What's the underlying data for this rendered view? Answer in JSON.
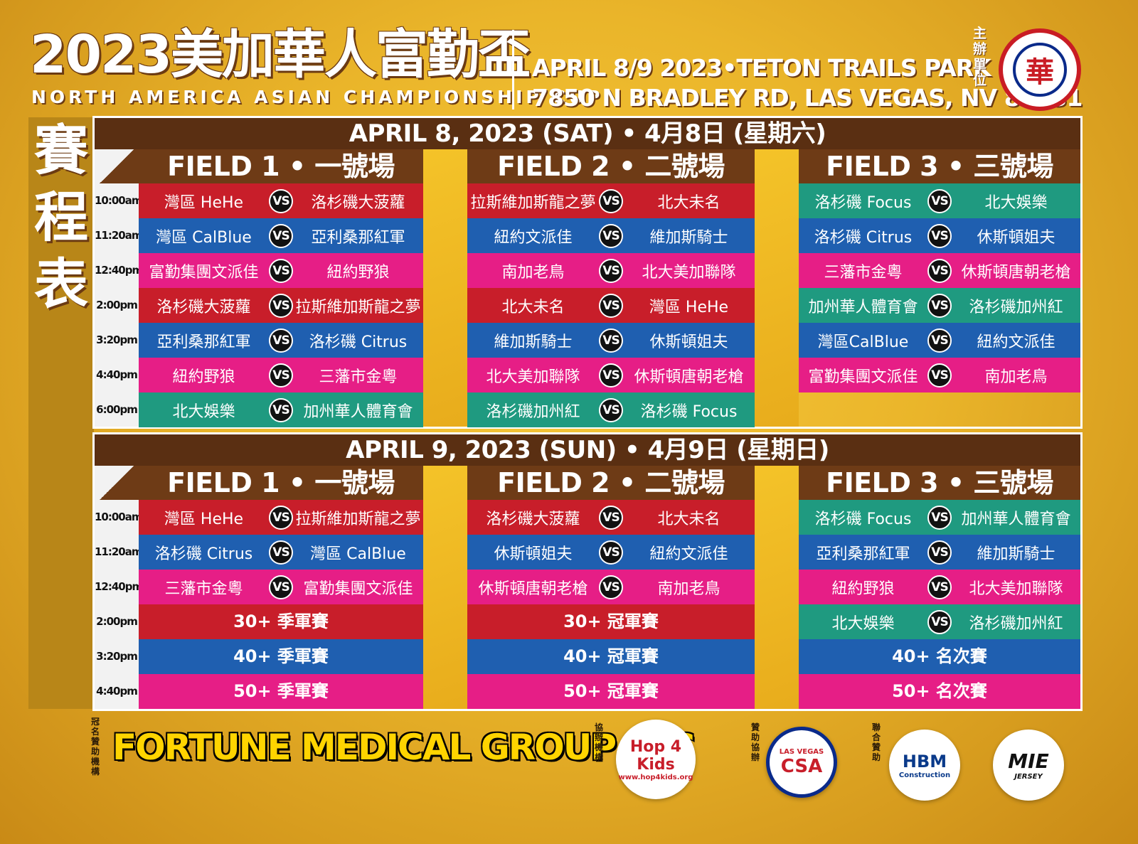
{
  "header": {
    "title": "2023美加華人富勤盃",
    "subtitle": "NORTH AMERICA ASIAN CHAMPIONSHIP CUP",
    "event_line_1": "APRIL 8/9 2023•TETON TRAILS PARK",
    "event_line_2": "7850 N BRADLEY RD, LAS VEGAS, NV 89131",
    "host_label": "主辦單位",
    "host_logo_glyph": "華"
  },
  "schedule_label": "賽程表",
  "day1": {
    "title": "APRIL 8, 2023 (SAT) • 4月8日 (星期六)",
    "fields": [
      "FIELD 1 • 一號場",
      "FIELD 2 • 二號場",
      "FIELD 3 • 三號場"
    ],
    "times": [
      "10:00am",
      "11:20am",
      "12:40pm",
      "2:00pm",
      "3:20pm",
      "4:40pm",
      "6:00pm"
    ],
    "field1": [
      {
        "home": "灣區 HeHe",
        "away": "洛杉磯大菠蘿",
        "color": "red"
      },
      {
        "home": "灣區 CalBlue",
        "away": "亞利桑那紅軍",
        "color": "blue"
      },
      {
        "home": "富勤集團文派佳",
        "away": "紐約野狼",
        "color": "pink"
      },
      {
        "home": "洛杉磯大菠蘿",
        "away": "拉斯維加斯龍之夢",
        "color": "red"
      },
      {
        "home": "亞利桑那紅軍",
        "away": "洛杉磯 Citrus",
        "color": "blue"
      },
      {
        "home": "紐約野狼",
        "away": "三藩市金粵",
        "color": "pink"
      },
      {
        "home": "北大娛樂",
        "away": "加州華人體育會",
        "color": "green"
      }
    ],
    "field2": [
      {
        "home": "拉斯維加斯龍之夢",
        "away": "北大未名",
        "color": "red"
      },
      {
        "home": "紐約文派佳",
        "away": "維加斯騎士",
        "color": "blue"
      },
      {
        "home": "南加老鳥",
        "away": "北大美加聯隊",
        "color": "pink"
      },
      {
        "home": "北大未名",
        "away": "灣區 HeHe",
        "color": "red"
      },
      {
        "home": "維加斯騎士",
        "away": "休斯頓姐夫",
        "color": "blue"
      },
      {
        "home": "北大美加聯隊",
        "away": "休斯頓唐朝老槍",
        "color": "pink"
      },
      {
        "home": "洛杉磯加州紅",
        "away": "洛杉磯 Focus",
        "color": "green"
      }
    ],
    "field3": [
      {
        "home": "洛杉磯 Focus",
        "away": "北大娛樂",
        "color": "green"
      },
      {
        "home": "洛杉磯 Citrus",
        "away": "休斯頓姐夫",
        "color": "blue"
      },
      {
        "home": "三藩市金粵",
        "away": "休斯頓唐朝老槍",
        "color": "pink"
      },
      {
        "home": "加州華人體育會",
        "away": "洛杉磯加州紅",
        "color": "green"
      },
      {
        "home": "灣區CalBlue",
        "away": "紐約文派佳",
        "color": "blue"
      },
      {
        "home": "富勤集團文派佳",
        "away": "南加老鳥",
        "color": "pink"
      }
    ]
  },
  "day2": {
    "title": "APRIL 9, 2023 (SUN) • 4月9日 (星期日)",
    "fields": [
      "FIELD 1 • 一號場",
      "FIELD 2 • 二號場",
      "FIELD 3 • 三號場"
    ],
    "times": [
      "10:00am",
      "11:20am",
      "12:40pm",
      "2:00pm",
      "3:20pm",
      "4:40pm"
    ],
    "field1": [
      {
        "home": "灣區 HeHe",
        "away": "拉斯維加斯龍之夢",
        "color": "red"
      },
      {
        "home": "洛杉磯 Citrus",
        "away": "灣區 CalBlue",
        "color": "blue"
      },
      {
        "home": "三藩市金粵",
        "away": "富勤集團文派佳",
        "color": "pink"
      }
    ],
    "field1_finals": [
      {
        "label": "30+ 季軍賽",
        "color": "red"
      },
      {
        "label": "40+ 季軍賽",
        "color": "blue"
      },
      {
        "label": "50+ 季軍賽",
        "color": "pink"
      }
    ],
    "field2": [
      {
        "home": "洛杉磯大菠蘿",
        "away": "北大未名",
        "color": "red"
      },
      {
        "home": "休斯頓姐夫",
        "away": "紐約文派佳",
        "color": "blue"
      },
      {
        "home": "休斯頓唐朝老槍",
        "away": "南加老鳥",
        "color": "pink"
      }
    ],
    "field2_finals": [
      {
        "label": "30+ 冠軍賽",
        "color": "red"
      },
      {
        "label": "40+ 冠軍賽",
        "color": "blue"
      },
      {
        "label": "50+ 冠軍賽",
        "color": "pink"
      }
    ],
    "field3": [
      {
        "home": "洛杉磯 Focus",
        "away": "加州華人體育會",
        "color": "green"
      },
      {
        "home": "亞利桑那紅軍",
        "away": "維加斯騎士",
        "color": "blue"
      },
      {
        "home": "紐約野狼",
        "away": "北大美加聯隊",
        "color": "pink"
      },
      {
        "home": "北大娛樂",
        "away": "洛杉磯加州紅",
        "color": "green"
      }
    ],
    "field3_finals": [
      {
        "label": "40+ 名次賽",
        "color": "blue"
      },
      {
        "label": "50+ 名次賽",
        "color": "pink"
      }
    ]
  },
  "vs_label": "VS",
  "sponsors": {
    "title_sponsor_label": "冠名贊助機構",
    "title_sponsor": "FORTUNE MEDICAL GROUP LLC",
    "co_organizer_label": "協辦機構",
    "co_organizer_logo": "Hop 4 Kids",
    "co_organizer_sub": "www.hop4kids.org",
    "support_label": "贊助協辦",
    "support_logo": "CSA",
    "support_sub": "LAS VEGAS",
    "joint_label": "聯合贊助",
    "joint_logo_1": "HBM",
    "joint_logo_1_sub": "Construction",
    "joint_logo_2": "MIE",
    "joint_logo_2_sub": "JERSEY"
  }
}
